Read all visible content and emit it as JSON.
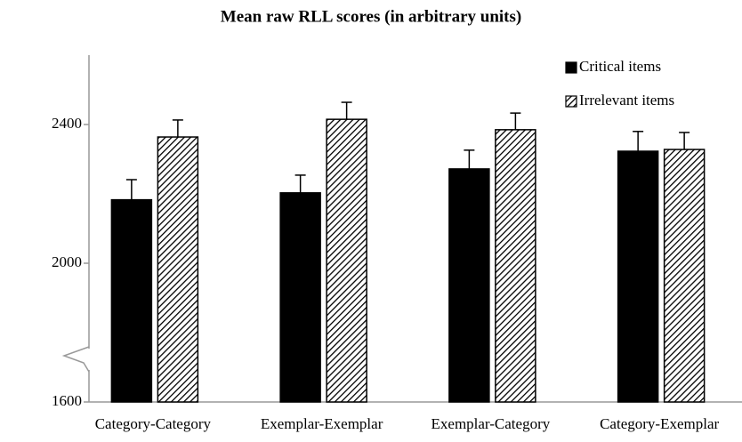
{
  "chart_data": {
    "type": "bar",
    "title": "Mean raw RLL scores (in arbitrary units)",
    "categories": [
      "Category-Category",
      "Exemplar-Exemplar",
      "Exemplar-Category",
      "Category-Exemplar"
    ],
    "series": [
      {
        "name": "Critical items",
        "color": "#000000",
        "hatch": false,
        "values": [
          2183,
          2203,
          2272,
          2323
        ],
        "errors": [
          58,
          51,
          54,
          57
        ]
      },
      {
        "name": "Irrelevant items",
        "color": "#000000",
        "hatch": true,
        "values": [
          2364,
          2415,
          2385,
          2328
        ],
        "errors": [
          49,
          49,
          48,
          49
        ]
      }
    ],
    "ylim": [
      1600,
      2600
    ],
    "yticks": [
      1600,
      2000,
      2400
    ],
    "grid": false,
    "axis_break": true,
    "legend": "upper right"
  }
}
